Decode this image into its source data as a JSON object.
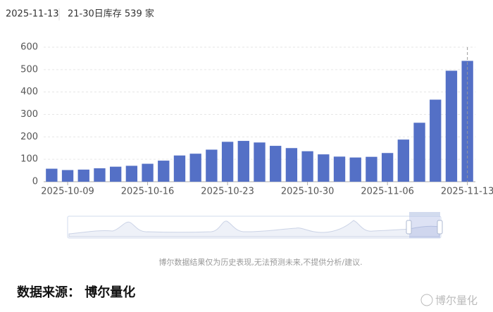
{
  "header": {
    "date": "2025-11-13",
    "summary": "21-30日库存 539 家"
  },
  "chart_data": {
    "type": "bar",
    "categories": [
      null,
      "2025-10-09",
      null,
      null,
      null,
      null,
      "2025-10-16",
      null,
      null,
      null,
      null,
      "2025-10-23",
      null,
      null,
      null,
      null,
      "2025-10-30",
      null,
      null,
      null,
      null,
      "2025-11-06",
      null,
      null,
      null,
      null,
      "2025-11-13"
    ],
    "values": [
      58,
      52,
      54,
      60,
      67,
      71,
      80,
      94,
      117,
      125,
      143,
      178,
      182,
      175,
      160,
      150,
      136,
      122,
      112,
      108,
      111,
      128,
      188,
      263,
      366,
      495,
      539
    ],
    "color": "#5470c6",
    "ylim": [
      0,
      600
    ],
    "yticks": [
      0,
      100,
      200,
      300,
      400,
      500,
      600
    ],
    "grid": true
  },
  "disclaimer": "博尔数据结果仅为历史表现,无法预测未来,不提供分析/建议.",
  "source": "数据来源： 博尔量化",
  "watermark": "博尔量化"
}
